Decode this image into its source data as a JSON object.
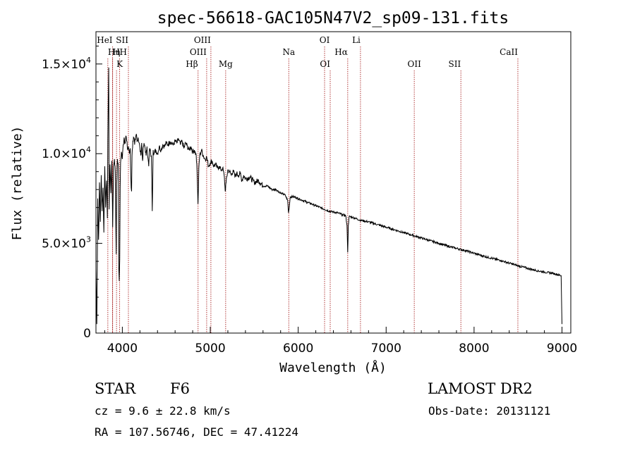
{
  "chart_data": {
    "type": "line",
    "title": "spec-56618-GAC105N47V2_sp09-131.fits",
    "xlabel": "Wavelength (Å)",
    "ylabel": "Flux (relative)",
    "xlim": [
      3700,
      9100
    ],
    "ylim": [
      0,
      16800
    ],
    "x_ticks": [
      {
        "value": 4000,
        "label": "4000"
      },
      {
        "value": 5000,
        "label": "5000"
      },
      {
        "value": 6000,
        "label": "6000"
      },
      {
        "value": 7000,
        "label": "7000"
      },
      {
        "value": 8000,
        "label": "8000"
      },
      {
        "value": 9000,
        "label": "9000"
      }
    ],
    "y_ticks": [
      {
        "value": 0,
        "mantissa": "0",
        "exponent": ""
      },
      {
        "value": 5000,
        "mantissa": "5.0×10",
        "exponent": "3"
      },
      {
        "value": 10000,
        "mantissa": "1.0×10",
        "exponent": "4"
      },
      {
        "value": 15000,
        "mantissa": "1.5×10",
        "exponent": "4"
      }
    ],
    "grid": false,
    "series": [
      {
        "line_color": "#000000",
        "points": [
          [
            3700,
            3600
          ],
          [
            3710,
            500
          ],
          [
            3720,
            7500
          ],
          [
            3730,
            5200
          ],
          [
            3740,
            8400
          ],
          [
            3750,
            6200
          ],
          [
            3760,
            8800
          ],
          [
            3770,
            6800
          ],
          [
            3780,
            8100
          ],
          [
            3790,
            5600
          ],
          [
            3800,
            9300
          ],
          [
            3810,
            7000
          ],
          [
            3820,
            8500
          ],
          [
            3830,
            6400
          ],
          [
            3835,
            10800
          ],
          [
            3840,
            12800
          ],
          [
            3845,
            14800
          ],
          [
            3850,
            6900
          ],
          [
            3860,
            9400
          ],
          [
            3870,
            7800
          ],
          [
            3880,
            9600
          ],
          [
            3890,
            5900
          ],
          [
            3900,
            9300
          ],
          [
            3910,
            9700
          ],
          [
            3920,
            9000
          ],
          [
            3930,
            4400
          ],
          [
            3935,
            8300
          ],
          [
            3945,
            9700
          ],
          [
            3955,
            9200
          ],
          [
            3960,
            3600
          ],
          [
            3965,
            2900
          ],
          [
            3970,
            4100
          ],
          [
            3975,
            8100
          ],
          [
            3980,
            9500
          ],
          [
            3990,
            10100
          ],
          [
            4000,
            9700
          ],
          [
            4010,
            10500
          ],
          [
            4020,
            10900
          ],
          [
            4030,
            10600
          ],
          [
            4040,
            11000
          ],
          [
            4050,
            10700
          ],
          [
            4060,
            10200
          ],
          [
            4070,
            10400
          ],
          [
            4080,
            10000
          ],
          [
            4090,
            10300
          ],
          [
            4100,
            8100
          ],
          [
            4105,
            7900
          ],
          [
            4110,
            9900
          ],
          [
            4120,
            10700
          ],
          [
            4130,
            10900
          ],
          [
            4140,
            10500
          ],
          [
            4150,
            10800
          ],
          [
            4160,
            11100
          ],
          [
            4170,
            10700
          ],
          [
            4180,
            10900
          ],
          [
            4200,
            10300
          ],
          [
            4210,
            9900
          ],
          [
            4220,
            10600
          ],
          [
            4230,
            9600
          ],
          [
            4240,
            10400
          ],
          [
            4250,
            10500
          ],
          [
            4260,
            10300
          ],
          [
            4270,
            9900
          ],
          [
            4280,
            10400
          ],
          [
            4290,
            9800
          ],
          [
            4300,
            9300
          ],
          [
            4310,
            10300
          ],
          [
            4320,
            10100
          ],
          [
            4330,
            9900
          ],
          [
            4335,
            8700
          ],
          [
            4340,
            6800
          ],
          [
            4345,
            8200
          ],
          [
            4350,
            10200
          ],
          [
            4360,
            10000
          ],
          [
            4380,
            10200
          ],
          [
            4400,
            10000
          ],
          [
            4420,
            10400
          ],
          [
            4440,
            10200
          ],
          [
            4460,
            10500
          ],
          [
            4480,
            10400
          ],
          [
            4500,
            10600
          ],
          [
            4520,
            10500
          ],
          [
            4540,
            10700
          ],
          [
            4560,
            10600
          ],
          [
            4580,
            10500
          ],
          [
            4600,
            10700
          ],
          [
            4620,
            10600
          ],
          [
            4640,
            10800
          ],
          [
            4660,
            10500
          ],
          [
            4680,
            10700
          ],
          [
            4700,
            10300
          ],
          [
            4720,
            10600
          ],
          [
            4740,
            10400
          ],
          [
            4760,
            10200
          ],
          [
            4780,
            10400
          ],
          [
            4800,
            10100
          ],
          [
            4820,
            10200
          ],
          [
            4840,
            9900
          ],
          [
            4850,
            9000
          ],
          [
            4855,
            8200
          ],
          [
            4860,
            7200
          ],
          [
            4865,
            8000
          ],
          [
            4870,
            9200
          ],
          [
            4880,
            9900
          ],
          [
            4900,
            10200
          ],
          [
            4920,
            9900
          ],
          [
            4940,
            9700
          ],
          [
            4960,
            9800
          ],
          [
            4980,
            9300
          ],
          [
            5000,
            9500
          ],
          [
            5020,
            9600
          ],
          [
            5040,
            9300
          ],
          [
            5060,
            9400
          ],
          [
            5080,
            9200
          ],
          [
            5100,
            9300
          ],
          [
            5120,
            9100
          ],
          [
            5140,
            9200
          ],
          [
            5160,
            8700
          ],
          [
            5170,
            7900
          ],
          [
            5180,
            8400
          ],
          [
            5200,
            9100
          ],
          [
            5220,
            9000
          ],
          [
            5240,
            8800
          ],
          [
            5260,
            9100
          ],
          [
            5280,
            8700
          ],
          [
            5300,
            8900
          ],
          [
            5320,
            8800
          ],
          [
            5340,
            8900
          ],
          [
            5360,
            8500
          ],
          [
            5380,
            8800
          ],
          [
            5400,
            8600
          ],
          [
            5450,
            8700
          ],
          [
            5500,
            8400
          ],
          [
            5550,
            8500
          ],
          [
            5600,
            8200
          ],
          [
            5650,
            8200
          ],
          [
            5700,
            8000
          ],
          [
            5750,
            8000
          ],
          [
            5800,
            7800
          ],
          [
            5850,
            7700
          ],
          [
            5880,
            7400
          ],
          [
            5890,
            6700
          ],
          [
            5900,
            7100
          ],
          [
            5910,
            7600
          ],
          [
            5950,
            7600
          ],
          [
            6000,
            7500
          ],
          [
            6050,
            7400
          ],
          [
            6100,
            7300
          ],
          [
            6150,
            7200
          ],
          [
            6200,
            7100
          ],
          [
            6250,
            7000
          ],
          [
            6300,
            6900
          ],
          [
            6350,
            6800
          ],
          [
            6400,
            6750
          ],
          [
            6450,
            6700
          ],
          [
            6500,
            6600
          ],
          [
            6540,
            6550
          ],
          [
            6555,
            6000
          ],
          [
            6563,
            4500
          ],
          [
            6570,
            6000
          ],
          [
            6580,
            6500
          ],
          [
            6620,
            6450
          ],
          [
            6700,
            6300
          ],
          [
            6800,
            6200
          ],
          [
            6900,
            6050
          ],
          [
            7000,
            5900
          ],
          [
            7100,
            5750
          ],
          [
            7200,
            5600
          ],
          [
            7300,
            5450
          ],
          [
            7400,
            5300
          ],
          [
            7500,
            5150
          ],
          [
            7600,
            5000
          ],
          [
            7700,
            4850
          ],
          [
            7800,
            4720
          ],
          [
            7900,
            4600
          ],
          [
            8000,
            4450
          ],
          [
            8100,
            4300
          ],
          [
            8200,
            4170
          ],
          [
            8300,
            4050
          ],
          [
            8400,
            3900
          ],
          [
            8500,
            3750
          ],
          [
            8600,
            3620
          ],
          [
            8700,
            3500
          ],
          [
            8800,
            3400
          ],
          [
            8900,
            3330
          ],
          [
            8990,
            3200
          ],
          [
            9000,
            500
          ]
        ]
      }
    ],
    "spectral_lines": [
      {
        "label": "Hη",
        "x": 3835,
        "row": 2,
        "label_side": "start"
      },
      {
        "label": "H",
        "x": 3889,
        "row": 2,
        "label_side": "start"
      },
      {
        "label": "HeI",
        "x": 3889,
        "row": 1,
        "label_side": "end"
      },
      {
        "label": "K",
        "x": 3934,
        "row": 3,
        "label_side": "start"
      },
      {
        "label": "H",
        "x": 3969,
        "row": 2,
        "label_side": "start"
      },
      {
        "label": "SII",
        "x": 4069,
        "row": 1,
        "label_side": "end"
      },
      {
        "label": "Hβ",
        "x": 4861,
        "row": 3,
        "label_side": "end"
      },
      {
        "label": "OIII",
        "x": 4959,
        "row": 2,
        "label_side": "end"
      },
      {
        "label": "OIII",
        "x": 5007,
        "row": 1,
        "label_side": "end"
      },
      {
        "label": "Mg",
        "x": 5175,
        "row": 3,
        "label_side": "middle"
      },
      {
        "label": "Na",
        "x": 5893,
        "row": 2,
        "label_side": "middle"
      },
      {
        "label": "OI",
        "x": 6300,
        "row": 1,
        "label_side": "middle"
      },
      {
        "label": "OI",
        "x": 6364,
        "row": 3,
        "label_side": "end"
      },
      {
        "label": "Hα",
        "x": 6563,
        "row": 2,
        "label_side": "end"
      },
      {
        "label": "Li",
        "x": 6708,
        "row": 1,
        "label_side": "end"
      },
      {
        "label": "OII",
        "x": 7320,
        "row": 3,
        "label_side": "middle"
      },
      {
        "label": "SII",
        "x": 7850,
        "row": 3,
        "label_side": "end"
      },
      {
        "label": "CaII",
        "x": 8498,
        "row": 2,
        "label_side": "end"
      }
    ],
    "spectral_line_color": "#b23a3a"
  },
  "info": {
    "object_type": "STAR",
    "subclass": "F6",
    "survey": "LAMOST DR2",
    "redshift": "cz = 9.6 ± 22.8 km/s",
    "obs_date": "Obs-Date: 20131121",
    "coords": "RA = 107.56746, DEC =  47.41224"
  }
}
